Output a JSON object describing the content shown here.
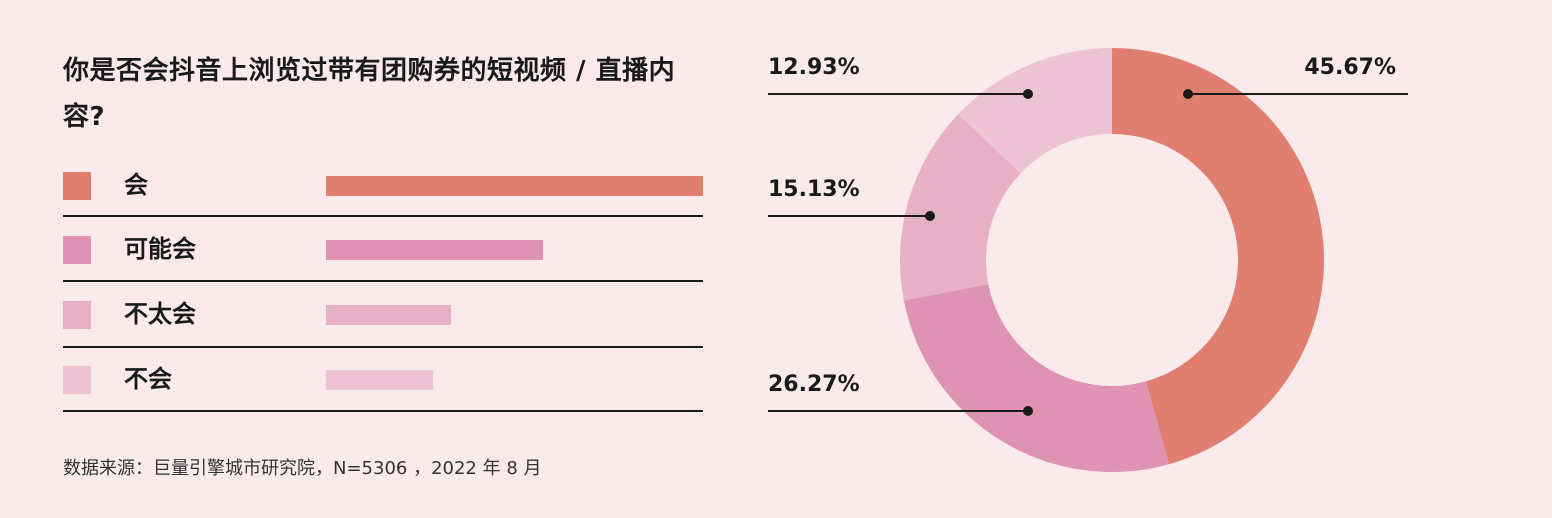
{
  "title": "你是否会抖音上浏览过带有团购券的短视频 / 直播内容?",
  "source": "数据来源：巨量引擎城市研究院，N=5306  ，2022 年 8 月",
  "chart_data": {
    "type": "pie",
    "donut": true,
    "categories": [
      "会",
      "可能会",
      "不太会",
      "不会"
    ],
    "values": [
      45.67,
      26.27,
      15.13,
      12.93
    ],
    "labels": [
      "45.67%",
      "26.27%",
      "15.13%",
      "12.93%"
    ],
    "colors": [
      "#e07f70",
      "#de93b3",
      "#e7b0c5",
      "#ecc3d3"
    ],
    "title": "你是否会抖音上浏览过带有团购券的短视频 / 直播内容?",
    "legend_position": "left"
  }
}
